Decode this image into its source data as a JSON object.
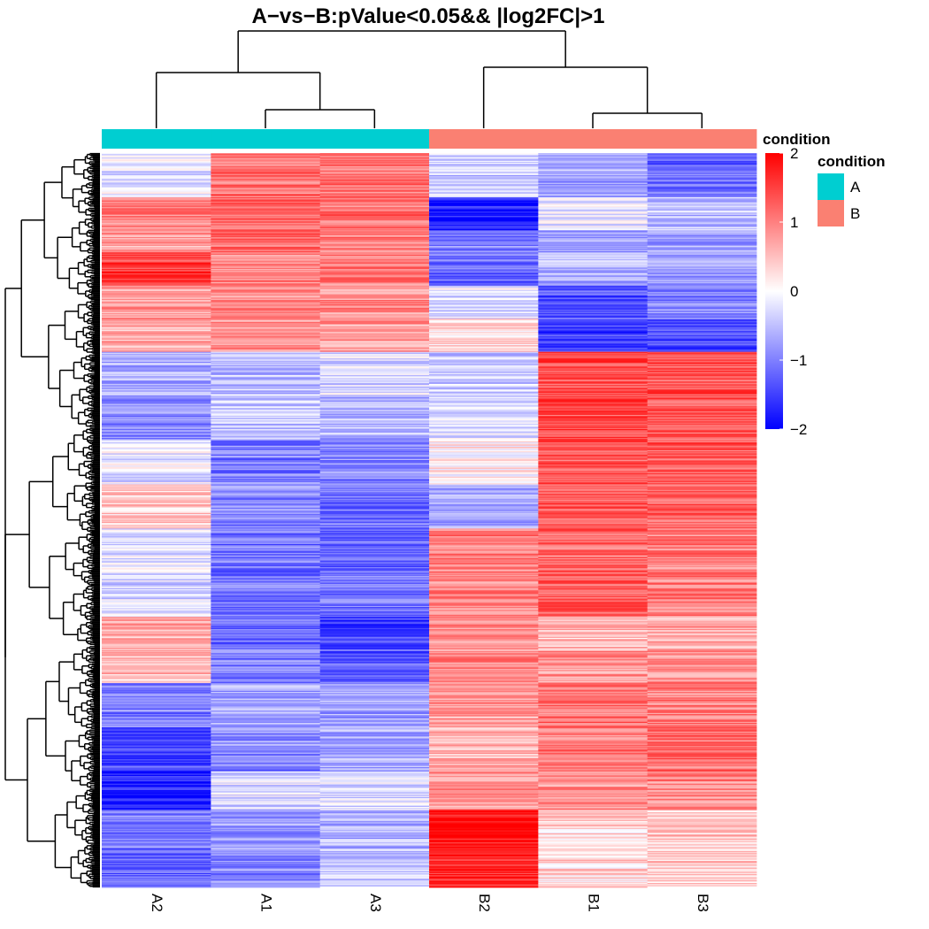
{
  "chart_data": {
    "type": "heatmap",
    "title": "A−vs−B:pValue<0.05&& |log2FC|>1",
    "columns": [
      "A2",
      "A1",
      "A3",
      "B2",
      "B1",
      "B3"
    ],
    "column_groups": [
      "A",
      "A",
      "A",
      "B",
      "B",
      "B"
    ],
    "annotation": {
      "title": "condition",
      "levels": [
        {
          "label": "A",
          "color": "#00CED1"
        },
        {
          "label": "B",
          "color": "#FA8072"
        }
      ]
    },
    "color_scale": {
      "title": "condition",
      "min": -2,
      "max": 2,
      "ticks": [
        "2",
        "1",
        "0",
        "−1",
        "−2"
      ],
      "low_color": "#0000FF",
      "mid_color": "#FFFFFF",
      "high_color": "#FF0000"
    },
    "row_blocks": [
      {
        "rows": 40,
        "values": [
          -0.2,
          1.1,
          1.1,
          -0.4,
          -0.7,
          -1.2
        ],
        "note": "top"
      },
      {
        "rows": 30,
        "values": [
          1.0,
          1.2,
          1.1,
          -1.8,
          -0.1,
          -0.5
        ]
      },
      {
        "rows": 20,
        "values": [
          0.7,
          1.2,
          1.0,
          -1.0,
          -0.8,
          -0.7
        ]
      },
      {
        "rows": 30,
        "values": [
          1.5,
          1.0,
          1.0,
          -1.2,
          -0.6,
          -0.8
        ]
      },
      {
        "rows": 30,
        "values": [
          0.8,
          0.9,
          0.9,
          -0.2,
          -1.3,
          -0.9
        ]
      },
      {
        "rows": 30,
        "values": [
          0.6,
          0.8,
          0.8,
          0.3,
          -1.5,
          -1.4
        ]
      },
      {
        "rows": 40,
        "values": [
          -0.6,
          -0.5,
          -0.3,
          -0.4,
          1.4,
          1.4
        ]
      },
      {
        "rows": 40,
        "values": [
          -0.9,
          -0.4,
          -0.6,
          -0.2,
          1.4,
          1.3
        ]
      },
      {
        "rows": 40,
        "values": [
          -0.2,
          -1.0,
          -0.9,
          0.1,
          1.3,
          1.3
        ]
      },
      {
        "rows": 40,
        "values": [
          0.4,
          -0.9,
          -1.1,
          -0.7,
          1.3,
          1.2
        ]
      },
      {
        "rows": 40,
        "values": [
          -0.2,
          -1.1,
          -1.2,
          1.0,
          1.2,
          1.0
        ]
      },
      {
        "rows": 40,
        "values": [
          -0.3,
          -1.1,
          -1.1,
          0.9,
          1.2,
          1.0
        ]
      },
      {
        "rows": 30,
        "values": [
          0.6,
          -1.2,
          -1.5,
          0.9,
          0.5,
          0.6
        ]
      },
      {
        "rows": 30,
        "values": [
          0.5,
          -1.0,
          -1.3,
          0.9,
          0.8,
          0.9
        ]
      },
      {
        "rows": 40,
        "values": [
          -1.0,
          -0.7,
          -0.7,
          0.8,
          1.1,
          1.0
        ]
      },
      {
        "rows": 40,
        "values": [
          -1.4,
          -0.9,
          -0.7,
          0.6,
          1.0,
          1.1
        ]
      },
      {
        "rows": 35,
        "values": [
          -1.8,
          -0.3,
          -0.3,
          0.8,
          0.9,
          0.9
        ]
      },
      {
        "rows": 35,
        "values": [
          -1.0,
          -0.8,
          -0.6,
          1.9,
          0.3,
          0.4
        ]
      },
      {
        "rows": 35,
        "values": [
          -1.2,
          -0.9,
          -0.4,
          1.7,
          0.3,
          0.4
        ]
      }
    ]
  }
}
